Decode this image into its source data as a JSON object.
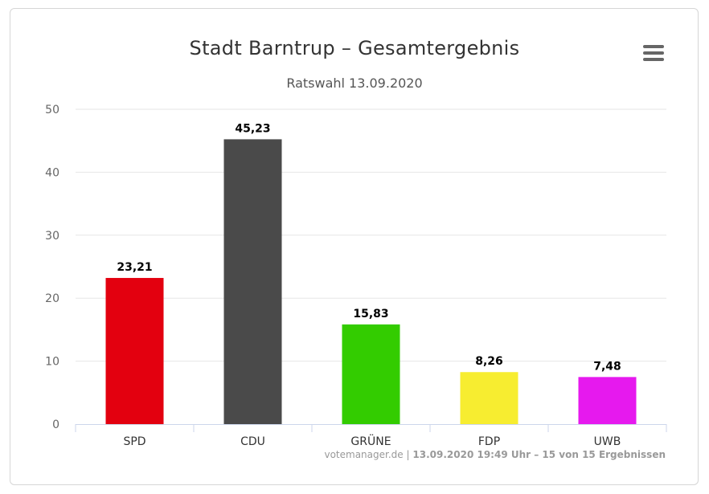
{
  "chart": {
    "title": "Stadt Barntrup – Gesamtergebnis",
    "subtitle": "Ratswahl 13.09.2020",
    "menu_icon": "hamburger-menu-icon"
  },
  "credits": {
    "source": "votemanager.de",
    "separator": "|",
    "timestamp": "13.09.2020 19:49 Uhr – 15 von 15 Ergebnissen"
  },
  "chart_data": {
    "type": "bar",
    "title": "Stadt Barntrup – Gesamtergebnis",
    "subtitle": "Ratswahl 13.09.2020",
    "xlabel": "",
    "ylabel": "",
    "ylim": [
      0,
      50
    ],
    "yticks": [
      0,
      10,
      20,
      30,
      40,
      50
    ],
    "grid": true,
    "legend": "none",
    "categories": [
      "SPD",
      "CDU",
      "GRÜNE",
      "FDP",
      "UWB"
    ],
    "values": [
      23.21,
      45.23,
      15.83,
      8.26,
      7.48
    ],
    "data_labels": [
      "23,21",
      "45,23",
      "15,83",
      "8,26",
      "7,48"
    ],
    "colors": [
      "#e3000f",
      "#4a4a4a",
      "#33cc00",
      "#f7ed30",
      "#e619ee"
    ]
  }
}
